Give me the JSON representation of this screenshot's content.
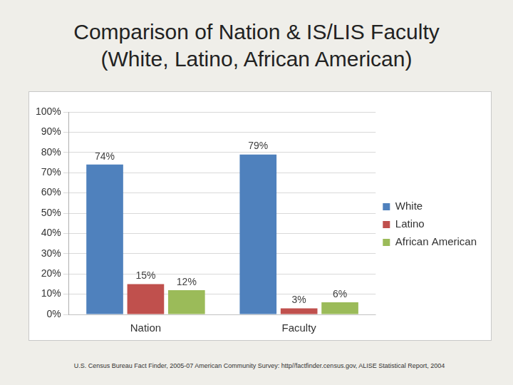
{
  "chart_data": {
    "type": "bar",
    "title": [
      "Comparison of Nation & IS/LIS Faculty",
      "(White, Latino, African American)"
    ],
    "source": "U.S. Census Bureau Fact Finder, 2005-07 American Community Survey: http//factfinder.census.gov, ALISE Statistical Report, 2004",
    "categories": [
      "Nation",
      "Faculty"
    ],
    "series": [
      {
        "name": "White",
        "color": "#4f81bd",
        "values": [
          74,
          79
        ],
        "value_labels": [
          "74%",
          "79%"
        ]
      },
      {
        "name": "Latino",
        "color": "#c0504d",
        "values": [
          15,
          3
        ],
        "value_labels": [
          "15%",
          "3%"
        ]
      },
      {
        "name": "African American",
        "color": "#9bbb59",
        "values": [
          12,
          6
        ],
        "value_labels": [
          "12%",
          "6%"
        ]
      }
    ],
    "ylim": [
      0,
      100
    ],
    "yticks": [
      {
        "value": 0,
        "label": "0%"
      },
      {
        "value": 10,
        "label": "10%"
      },
      {
        "value": 20,
        "label": "20%"
      },
      {
        "value": 30,
        "label": "30%"
      },
      {
        "value": 40,
        "label": "40%"
      },
      {
        "value": 50,
        "label": "50%"
      },
      {
        "value": 60,
        "label": "60%"
      },
      {
        "value": 70,
        "label": "70%"
      },
      {
        "value": 80,
        "label": "80%"
      },
      {
        "value": 90,
        "label": "90%"
      },
      {
        "value": 100,
        "label": "100%"
      }
    ],
    "grid": true,
    "legend": "right",
    "data_labels": true
  }
}
